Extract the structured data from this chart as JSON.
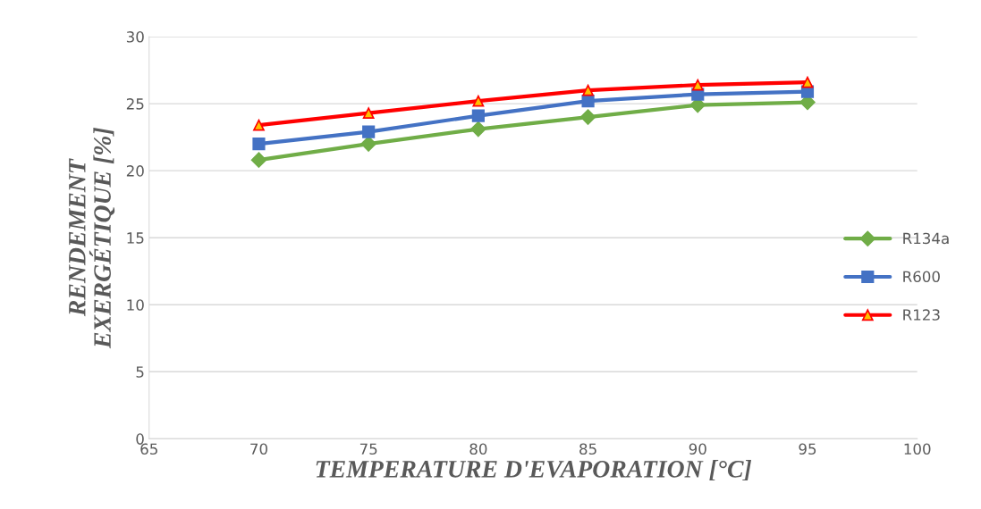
{
  "chart_data": {
    "type": "line",
    "xlabel": "TEMPERATURE D'EVAPORATION [°C]",
    "ylabel": "RENDEMENT EXERGÉTIQUE [%]",
    "x": [
      70,
      75,
      80,
      85,
      90,
      95
    ],
    "series": [
      {
        "name": "R134a",
        "color": "#70ad47",
        "marker": "diamond",
        "values": [
          20.8,
          22.0,
          23.1,
          24.0,
          24.9,
          25.1
        ]
      },
      {
        "name": "R600",
        "color": "#4472c4",
        "marker": "square",
        "values": [
          22.0,
          22.9,
          24.1,
          25.2,
          25.7,
          25.9
        ]
      },
      {
        "name": "R123",
        "color": "#ff0000",
        "marker": "triangle",
        "values": [
          23.4,
          24.3,
          25.2,
          26.0,
          26.4,
          26.6
        ]
      }
    ],
    "xlim": [
      65,
      100
    ],
    "xticks": [
      65,
      70,
      75,
      80,
      85,
      90,
      95,
      100
    ],
    "ylim": [
      0,
      30
    ],
    "yticks": [
      0,
      5,
      10,
      15,
      20,
      25,
      30
    ],
    "grid": "y",
    "legend": "right",
    "line_style": "solid"
  }
}
